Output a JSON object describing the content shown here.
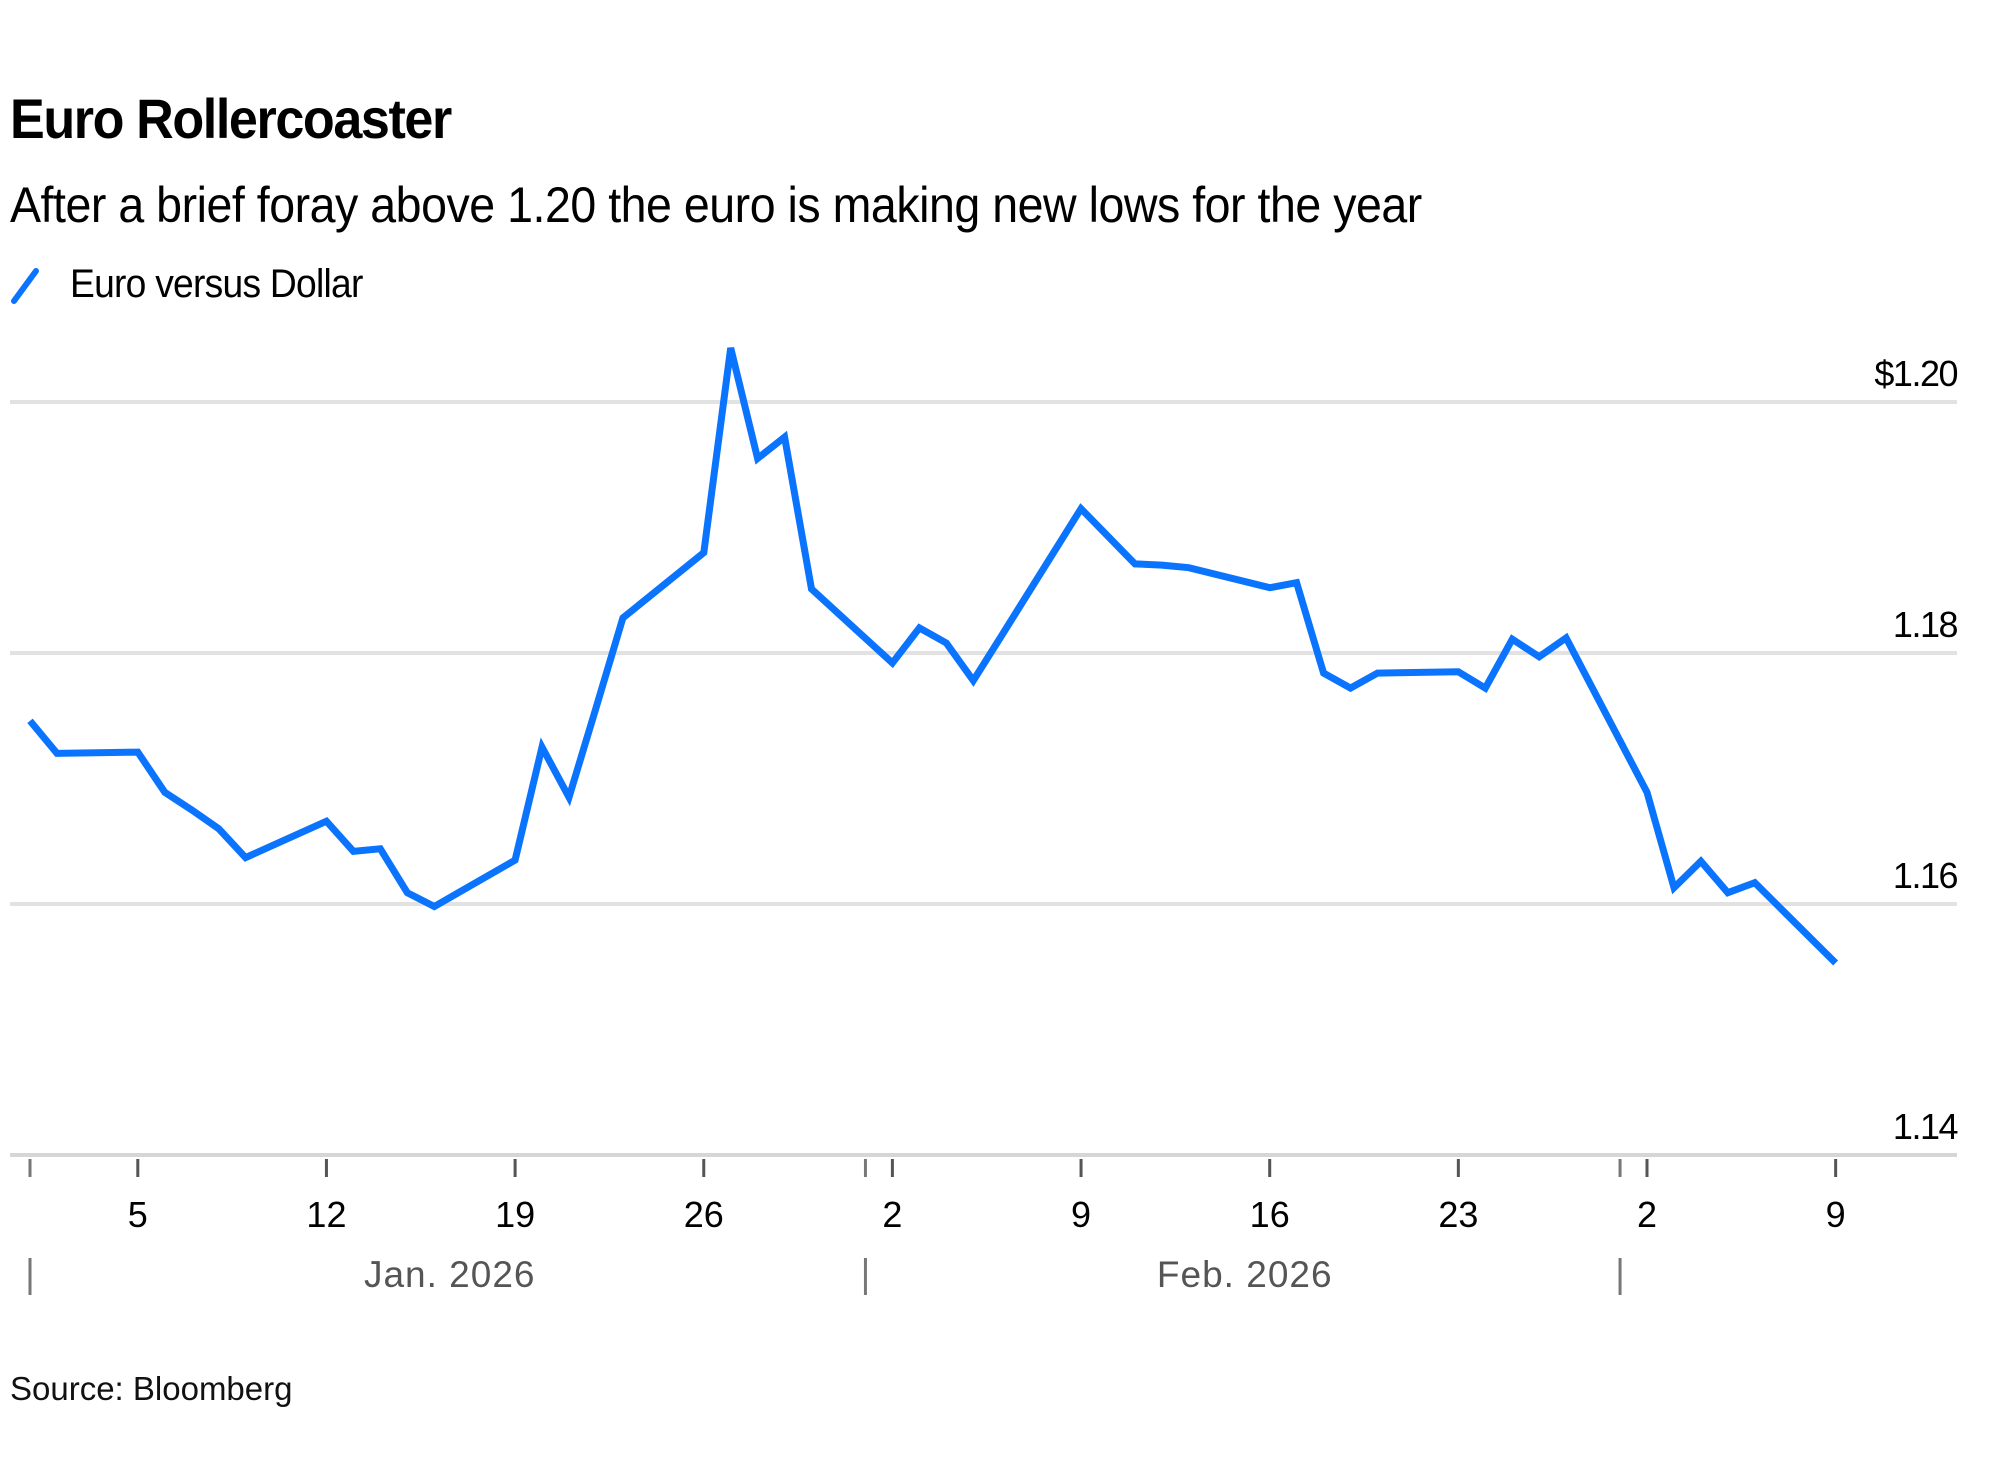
{
  "chart_data": {
    "type": "line",
    "title": "Euro Rollercoaster",
    "subtitle": "After a brief foray above 1.20 the euro is making new lows for the year",
    "source": "Source: Bloomberg",
    "xlabel": "",
    "ylabel": "",
    "ylim": [
      1.14,
      1.2
    ],
    "yticks": [
      {
        "value": 1.2,
        "label": "$1.20"
      },
      {
        "value": 1.18,
        "label": "1.18"
      },
      {
        "value": 1.16,
        "label": "1.16"
      },
      {
        "value": 1.14,
        "label": "1.14"
      }
    ],
    "grid": true,
    "legend_position": "top-left",
    "x_domain": [
      "2026-01-01",
      "2026-03-13"
    ],
    "xticks": [
      {
        "date": "2026-01-05",
        "label": "5"
      },
      {
        "date": "2026-01-12",
        "label": "12"
      },
      {
        "date": "2026-01-19",
        "label": "19"
      },
      {
        "date": "2026-01-26",
        "label": "26"
      },
      {
        "date": "2026-02-02",
        "label": "2"
      },
      {
        "date": "2026-02-09",
        "label": "9"
      },
      {
        "date": "2026-02-16",
        "label": "16"
      },
      {
        "date": "2026-02-23",
        "label": "23"
      },
      {
        "date": "2026-03-02",
        "label": "2"
      },
      {
        "date": "2026-03-09",
        "label": "9"
      }
    ],
    "month_boundaries": [
      {
        "date": "2026-01-01",
        "label": "Jan. 2026"
      },
      {
        "date": "2026-02-01",
        "label": "Feb. 2026"
      },
      {
        "date": "2026-03-01",
        "label": ""
      }
    ],
    "series": [
      {
        "name": "Euro versus Dollar",
        "color": "#0a74ff",
        "x": [
          "2026-01-01",
          "2026-01-02",
          "2026-01-05",
          "2026-01-06",
          "2026-01-07",
          "2026-01-08",
          "2026-01-09",
          "2026-01-12",
          "2026-01-13",
          "2026-01-14",
          "2026-01-15",
          "2026-01-16",
          "2026-01-19",
          "2026-01-20",
          "2026-01-21",
          "2026-01-22",
          "2026-01-23",
          "2026-01-26",
          "2026-01-27",
          "2026-01-28",
          "2026-01-29",
          "2026-01-30",
          "2026-02-02",
          "2026-02-03",
          "2026-02-04",
          "2026-02-05",
          "2026-02-06",
          "2026-02-09",
          "2026-02-10",
          "2026-02-11",
          "2026-02-12",
          "2026-02-13",
          "2026-02-16",
          "2026-02-17",
          "2026-02-18",
          "2026-02-19",
          "2026-02-20",
          "2026-02-23",
          "2026-02-24",
          "2026-02-25",
          "2026-02-26",
          "2026-02-27",
          "2026-03-02",
          "2026-03-03",
          "2026-03-04",
          "2026-03-05",
          "2026-03-06",
          "2026-03-09"
        ],
        "values": [
          1.1746,
          1.172,
          1.1721,
          1.1689,
          1.1675,
          1.166,
          1.1637,
          1.1666,
          1.1642,
          1.1644,
          1.1609,
          1.1598,
          1.1635,
          1.1725,
          1.1685,
          1.1756,
          1.1828,
          1.188,
          1.2043,
          1.1955,
          1.1972,
          1.1851,
          1.1792,
          1.182,
          1.1808,
          1.1778,
          1.1812,
          1.1915,
          1.1893,
          1.1871,
          1.187,
          1.1868,
          1.1852,
          1.1856,
          1.1784,
          1.1772,
          1.1784,
          1.1785,
          1.1772,
          1.1811,
          1.1797,
          1.1812,
          1.1689,
          1.1613,
          1.1634,
          1.1609,
          1.1617,
          1.1553
        ]
      }
    ]
  }
}
